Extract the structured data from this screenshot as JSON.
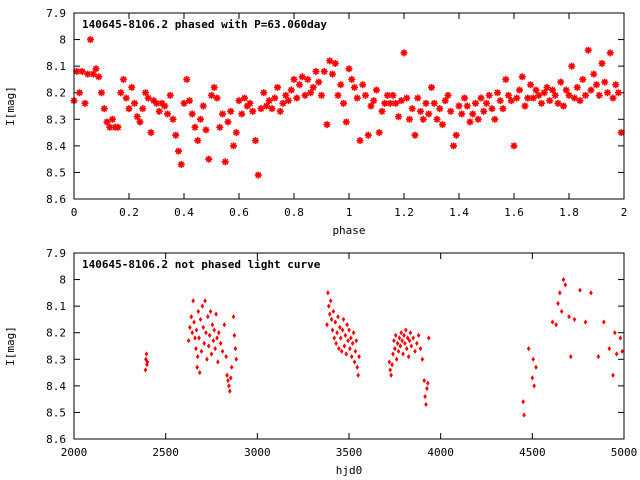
{
  "chart_data": [
    {
      "type": "scatter",
      "title": "140645-8106.2 phased with P=63.060day",
      "xlabel": "phase",
      "ylabel": "I[mag]",
      "xlim": [
        0,
        2
      ],
      "ylim": [
        7.9,
        8.6
      ],
      "y_inverted": true,
      "xticks": [
        "0",
        "0.2",
        "0.4",
        "0.6",
        "0.8",
        "1",
        "1.2",
        "1.4",
        "1.6",
        "1.8",
        "2"
      ],
      "yticks": [
        "7.9",
        "8",
        "8.1",
        "8.2",
        "8.3",
        "8.4",
        "8.5",
        "8.6"
      ],
      "marker": "star",
      "color": "#ff0000",
      "points": [
        [
          0.0,
          8.23
        ],
        [
          0.01,
          8.12
        ],
        [
          0.02,
          8.2
        ],
        [
          0.03,
          8.12
        ],
        [
          0.04,
          8.24
        ],
        [
          0.05,
          8.13
        ],
        [
          0.06,
          8.0
        ],
        [
          0.07,
          8.13
        ],
        [
          0.08,
          8.11
        ],
        [
          0.09,
          8.14
        ],
        [
          0.1,
          8.2
        ],
        [
          0.11,
          8.26
        ],
        [
          0.12,
          8.31
        ],
        [
          0.13,
          8.33
        ],
        [
          0.14,
          8.3
        ],
        [
          0.15,
          8.33
        ],
        [
          0.16,
          8.33
        ],
        [
          0.17,
          8.2
        ],
        [
          0.18,
          8.15
        ],
        [
          0.19,
          8.22
        ],
        [
          0.2,
          8.26
        ],
        [
          0.21,
          8.18
        ],
        [
          0.22,
          8.24
        ],
        [
          0.23,
          8.29
        ],
        [
          0.24,
          8.31
        ],
        [
          0.25,
          8.26
        ],
        [
          0.26,
          8.2
        ],
        [
          0.27,
          8.22
        ],
        [
          0.28,
          8.35
        ],
        [
          0.29,
          8.23
        ],
        [
          0.3,
          8.24
        ],
        [
          0.31,
          8.27
        ],
        [
          0.32,
          8.24
        ],
        [
          0.33,
          8.25
        ],
        [
          0.34,
          8.28
        ],
        [
          0.35,
          8.21
        ],
        [
          0.36,
          8.3
        ],
        [
          0.37,
          8.36
        ],
        [
          0.38,
          8.42
        ],
        [
          0.39,
          8.47
        ],
        [
          0.4,
          8.24
        ],
        [
          0.41,
          8.15
        ],
        [
          0.42,
          8.23
        ],
        [
          0.43,
          8.28
        ],
        [
          0.44,
          8.33
        ],
        [
          0.45,
          8.38
        ],
        [
          0.46,
          8.3
        ],
        [
          0.47,
          8.25
        ],
        [
          0.48,
          8.34
        ],
        [
          0.49,
          8.45
        ],
        [
          0.5,
          8.21
        ],
        [
          0.51,
          8.18
        ],
        [
          0.52,
          8.22
        ],
        [
          0.53,
          8.33
        ],
        [
          0.54,
          8.28
        ],
        [
          0.55,
          8.46
        ],
        [
          0.56,
          8.31
        ],
        [
          0.57,
          8.27
        ],
        [
          0.58,
          8.4
        ],
        [
          0.59,
          8.35
        ],
        [
          0.6,
          8.23
        ],
        [
          0.61,
          8.28
        ],
        [
          0.62,
          8.22
        ],
        [
          0.63,
          8.25
        ],
        [
          0.64,
          8.24
        ],
        [
          0.65,
          8.27
        ],
        [
          0.66,
          8.38
        ],
        [
          0.67,
          8.51
        ],
        [
          0.68,
          8.26
        ],
        [
          0.69,
          8.2
        ],
        [
          0.7,
          8.25
        ],
        [
          0.71,
          8.23
        ],
        [
          0.72,
          8.26
        ],
        [
          0.73,
          8.22
        ],
        [
          0.74,
          8.18
        ],
        [
          0.75,
          8.27
        ],
        [
          0.76,
          8.24
        ],
        [
          0.77,
          8.21
        ],
        [
          0.78,
          8.23
        ],
        [
          0.79,
          8.19
        ],
        [
          0.8,
          8.15
        ],
        [
          0.81,
          8.22
        ],
        [
          0.82,
          8.17
        ],
        [
          0.83,
          8.14
        ],
        [
          0.84,
          8.21
        ],
        [
          0.85,
          8.15
        ],
        [
          0.86,
          8.2
        ],
        [
          0.87,
          8.18
        ],
        [
          0.88,
          8.12
        ],
        [
          0.89,
          8.16
        ],
        [
          0.9,
          8.21
        ],
        [
          0.91,
          8.12
        ],
        [
          0.92,
          8.32
        ],
        [
          0.93,
          8.08
        ],
        [
          0.94,
          8.13
        ],
        [
          0.95,
          8.09
        ],
        [
          0.96,
          8.21
        ],
        [
          0.97,
          8.17
        ],
        [
          0.98,
          8.24
        ],
        [
          0.99,
          8.31
        ],
        [
          1.0,
          8.11
        ],
        [
          1.01,
          8.15
        ],
        [
          1.02,
          8.18
        ],
        [
          1.03,
          8.22
        ],
        [
          1.04,
          8.38
        ],
        [
          1.05,
          8.17
        ],
        [
          1.06,
          8.21
        ],
        [
          1.07,
          8.36
        ],
        [
          1.08,
          8.25
        ],
        [
          1.09,
          8.23
        ],
        [
          1.1,
          8.19
        ],
        [
          1.11,
          8.35
        ],
        [
          1.12,
          8.27
        ],
        [
          1.13,
          8.24
        ],
        [
          1.14,
          8.21
        ],
        [
          1.15,
          8.24
        ],
        [
          1.16,
          8.21
        ],
        [
          1.17,
          8.24
        ],
        [
          1.18,
          8.29
        ],
        [
          1.19,
          8.23
        ],
        [
          1.2,
          8.05
        ],
        [
          1.21,
          8.22
        ],
        [
          1.22,
          8.3
        ],
        [
          1.23,
          8.26
        ],
        [
          1.24,
          8.36
        ],
        [
          1.25,
          8.22
        ],
        [
          1.26,
          8.27
        ],
        [
          1.27,
          8.3
        ],
        [
          1.28,
          8.24
        ],
        [
          1.29,
          8.28
        ],
        [
          1.3,
          8.18
        ],
        [
          1.31,
          8.24
        ],
        [
          1.32,
          8.3
        ],
        [
          1.33,
          8.26
        ],
        [
          1.34,
          8.32
        ],
        [
          1.35,
          8.23
        ],
        [
          1.36,
          8.21
        ],
        [
          1.37,
          8.27
        ],
        [
          1.38,
          8.4
        ],
        [
          1.39,
          8.36
        ],
        [
          1.4,
          8.25
        ],
        [
          1.41,
          8.28
        ],
        [
          1.42,
          8.22
        ],
        [
          1.43,
          8.25
        ],
        [
          1.44,
          8.31
        ],
        [
          1.45,
          8.28
        ],
        [
          1.46,
          8.24
        ],
        [
          1.47,
          8.3
        ],
        [
          1.48,
          8.22
        ],
        [
          1.49,
          8.27
        ],
        [
          1.5,
          8.24
        ],
        [
          1.51,
          8.21
        ],
        [
          1.52,
          8.26
        ],
        [
          1.53,
          8.3
        ],
        [
          1.54,
          8.2
        ],
        [
          1.55,
          8.23
        ],
        [
          1.56,
          8.26
        ],
        [
          1.57,
          8.15
        ],
        [
          1.58,
          8.21
        ],
        [
          1.59,
          8.23
        ],
        [
          1.6,
          8.4
        ],
        [
          1.61,
          8.22
        ],
        [
          1.62,
          8.19
        ],
        [
          1.63,
          8.14
        ],
        [
          1.64,
          8.25
        ],
        [
          1.65,
          8.22
        ],
        [
          1.66,
          8.17
        ],
        [
          1.67,
          8.22
        ],
        [
          1.68,
          8.19
        ],
        [
          1.69,
          8.21
        ],
        [
          1.7,
          8.24
        ],
        [
          1.71,
          8.2
        ],
        [
          1.72,
          8.18
        ],
        [
          1.73,
          8.23
        ],
        [
          1.74,
          8.19
        ],
        [
          1.75,
          8.21
        ],
        [
          1.76,
          8.24
        ],
        [
          1.77,
          8.16
        ],
        [
          1.78,
          8.25
        ],
        [
          1.79,
          8.19
        ],
        [
          1.8,
          8.21
        ],
        [
          1.81,
          8.1
        ],
        [
          1.82,
          8.22
        ],
        [
          1.83,
          8.18
        ],
        [
          1.84,
          8.23
        ],
        [
          1.85,
          8.15
        ],
        [
          1.86,
          8.21
        ],
        [
          1.87,
          8.04
        ],
        [
          1.88,
          8.19
        ],
        [
          1.89,
          8.13
        ],
        [
          1.9,
          8.17
        ],
        [
          1.91,
          8.21
        ],
        [
          1.92,
          8.09
        ],
        [
          1.93,
          8.16
        ],
        [
          1.94,
          8.2
        ],
        [
          1.95,
          8.05
        ],
        [
          1.96,
          8.22
        ],
        [
          1.97,
          8.17
        ],
        [
          1.98,
          8.2
        ],
        [
          1.99,
          8.35
        ]
      ]
    },
    {
      "type": "scatter",
      "title": "140645-8106.2 not phased light curve",
      "xlabel": "hjd0",
      "ylabel": "I[mag]",
      "xlim": [
        2000,
        5000
      ],
      "ylim": [
        7.9,
        8.6
      ],
      "y_inverted": true,
      "xticks": [
        "2000",
        "2500",
        "3000",
        "3500",
        "4000",
        "4500",
        "5000"
      ],
      "yticks": [
        "7.9",
        "8",
        "8.1",
        "8.2",
        "8.3",
        "8.4",
        "8.5",
        "8.6"
      ],
      "marker": "diamond",
      "color": "#ff0000",
      "points": [
        [
          2390,
          8.34
        ],
        [
          2392,
          8.3
        ],
        [
          2395,
          8.28
        ],
        [
          2398,
          8.32
        ],
        [
          2400,
          8.31
        ],
        [
          2625,
          8.23
        ],
        [
          2632,
          8.18
        ],
        [
          2640,
          8.14
        ],
        [
          2645,
          8.2
        ],
        [
          2650,
          8.08
        ],
        [
          2655,
          8.16
        ],
        [
          2660,
          8.22
        ],
        [
          2665,
          8.26
        ],
        [
          2668,
          8.19
        ],
        [
          2672,
          8.33
        ],
        [
          2675,
          8.29
        ],
        [
          2678,
          8.12
        ],
        [
          2682,
          8.22
        ],
        [
          2686,
          8.35
        ],
        [
          2690,
          8.15
        ],
        [
          2695,
          8.27
        ],
        [
          2700,
          8.1
        ],
        [
          2705,
          8.18
        ],
        [
          2710,
          8.24
        ],
        [
          2715,
          8.08
        ],
        [
          2720,
          8.2
        ],
        [
          2725,
          8.3
        ],
        [
          2730,
          8.14
        ],
        [
          2735,
          8.25
        ],
        [
          2740,
          8.21
        ],
        [
          2745,
          8.12
        ],
        [
          2750,
          8.28
        ],
        [
          2755,
          8.17
        ],
        [
          2760,
          8.23
        ],
        [
          2765,
          8.19
        ],
        [
          2770,
          8.26
        ],
        [
          2775,
          8.13
        ],
        [
          2780,
          8.22
        ],
        [
          2785,
          8.31
        ],
        [
          2790,
          8.2
        ],
        [
          2800,
          8.24
        ],
        [
          2810,
          8.27
        ],
        [
          2820,
          8.17
        ],
        [
          2830,
          8.29
        ],
        [
          2835,
          8.36
        ],
        [
          2840,
          8.38
        ],
        [
          2845,
          8.4
        ],
        [
          2850,
          8.42
        ],
        [
          2855,
          8.37
        ],
        [
          2860,
          8.33
        ],
        [
          2870,
          8.14
        ],
        [
          2875,
          8.21
        ],
        [
          2880,
          8.26
        ],
        [
          2885,
          8.3
        ],
        [
          3380,
          8.17
        ],
        [
          3385,
          8.05
        ],
        [
          3390,
          8.1
        ],
        [
          3395,
          8.13
        ],
        [
          3400,
          8.08
        ],
        [
          3405,
          8.15
        ],
        [
          3410,
          8.19
        ],
        [
          3415,
          8.12
        ],
        [
          3420,
          8.22
        ],
        [
          3425,
          8.16
        ],
        [
          3430,
          8.24
        ],
        [
          3435,
          8.2
        ],
        [
          3440,
          8.14
        ],
        [
          3445,
          8.26
        ],
        [
          3450,
          8.18
        ],
        [
          3455,
          8.22
        ],
        [
          3460,
          8.27
        ],
        [
          3465,
          8.19
        ],
        [
          3470,
          8.15
        ],
        [
          3475,
          8.25
        ],
        [
          3480,
          8.21
        ],
        [
          3485,
          8.28
        ],
        [
          3490,
          8.17
        ],
        [
          3495,
          8.23
        ],
        [
          3500,
          8.19
        ],
        [
          3505,
          8.26
        ],
        [
          3510,
          8.22
        ],
        [
          3515,
          8.29
        ],
        [
          3520,
          8.24
        ],
        [
          3525,
          8.2
        ],
        [
          3530,
          8.31
        ],
        [
          3535,
          8.27
        ],
        [
          3540,
          8.23
        ],
        [
          3545,
          8.33
        ],
        [
          3550,
          8.36
        ],
        [
          3555,
          8.29
        ],
        [
          3720,
          8.31
        ],
        [
          3725,
          8.34
        ],
        [
          3730,
          8.36
        ],
        [
          3735,
          8.32
        ],
        [
          3740,
          8.28
        ],
        [
          3745,
          8.23
        ],
        [
          3750,
          8.26
        ],
        [
          3755,
          8.21
        ],
        [
          3760,
          8.3
        ],
        [
          3765,
          8.24
        ],
        [
          3770,
          8.27
        ],
        [
          3775,
          8.22
        ],
        [
          3780,
          8.25
        ],
        [
          3785,
          8.2
        ],
        [
          3790,
          8.23
        ],
        [
          3795,
          8.28
        ],
        [
          3800,
          8.21
        ],
        [
          3805,
          8.24
        ],
        [
          3810,
          8.19
        ],
        [
          3815,
          8.26
        ],
        [
          3820,
          8.22
        ],
        [
          3825,
          8.29
        ],
        [
          3830,
          8.23
        ],
        [
          3835,
          8.2
        ],
        [
          3840,
          8.25
        ],
        [
          3850,
          8.22
        ],
        [
          3860,
          8.27
        ],
        [
          3870,
          8.24
        ],
        [
          3880,
          8.21
        ],
        [
          3890,
          8.26
        ],
        [
          3900,
          8.3
        ],
        [
          3910,
          8.38
        ],
        [
          3915,
          8.44
        ],
        [
          3920,
          8.47
        ],
        [
          3925,
          8.41
        ],
        [
          3930,
          8.39
        ],
        [
          3935,
          8.22
        ],
        [
          4450,
          8.46
        ],
        [
          4455,
          8.51
        ],
        [
          4480,
          8.26
        ],
        [
          4500,
          8.37
        ],
        [
          4505,
          8.3
        ],
        [
          4510,
          8.4
        ],
        [
          4520,
          8.33
        ],
        [
          4610,
          8.16
        ],
        [
          4630,
          8.17
        ],
        [
          4640,
          8.09
        ],
        [
          4650,
          8.05
        ],
        [
          4660,
          8.12
        ],
        [
          4670,
          8.0
        ],
        [
          4680,
          8.02
        ],
        [
          4700,
          8.14
        ],
        [
          4710,
          8.29
        ],
        [
          4730,
          8.15
        ],
        [
          4760,
          8.04
        ],
        [
          4790,
          8.16
        ],
        [
          4820,
          8.05
        ],
        [
          4860,
          8.29
        ],
        [
          4890,
          8.16
        ],
        [
          4920,
          8.26
        ],
        [
          4940,
          8.36
        ],
        [
          4950,
          8.2
        ],
        [
          4960,
          8.28
        ],
        [
          4980,
          8.22
        ],
        [
          4990,
          8.27
        ]
      ]
    }
  ]
}
